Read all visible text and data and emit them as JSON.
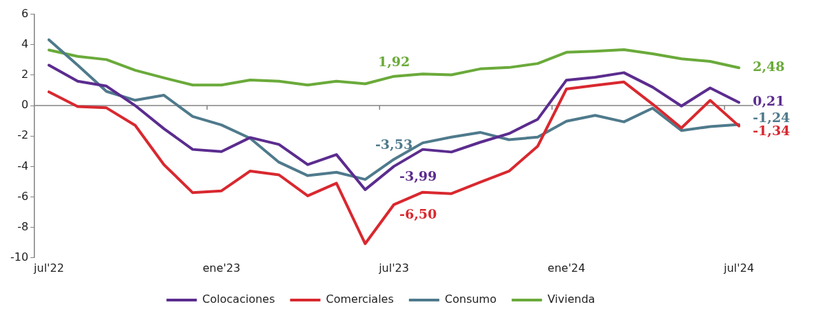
{
  "chart_data": {
    "type": "line",
    "categories": [
      "jul'22",
      null,
      null,
      null,
      null,
      null,
      "ene'23",
      null,
      null,
      null,
      null,
      null,
      "jul'23",
      null,
      null,
      null,
      null,
      null,
      "ene'24",
      null,
      null,
      null,
      null,
      null,
      "jul'24"
    ],
    "series": [
      {
        "name": "Colocaciones",
        "color": "#5b2c8f",
        "values": [
          2.65,
          1.6,
          1.28,
          0,
          -1.52,
          -2.88,
          -3.02,
          -2.1,
          -2.55,
          -3.88,
          -3.22,
          -5.52,
          -3.99,
          -2.88,
          -3.05,
          -2.41,
          -1.84,
          -0.9,
          1.67,
          1.86,
          2.16,
          1.21,
          -0.03,
          1.16,
          0.21
        ],
        "value_labels": [
          null,
          null,
          null,
          null,
          null,
          null,
          null,
          null,
          null,
          null,
          null,
          null,
          "-3,99",
          null,
          null,
          null,
          null,
          null,
          null,
          null,
          null,
          null,
          null,
          null,
          "0,21"
        ]
      },
      {
        "name": "Comerciales",
        "color": "#d9282f",
        "values": [
          0.9,
          -0.07,
          -0.15,
          -1.3,
          -3.88,
          -5.72,
          -5.6,
          -4.3,
          -4.55,
          -5.93,
          -5.1,
          -9.07,
          -6.5,
          -5.69,
          -5.78,
          -5.03,
          -4.31,
          -2.67,
          1.09,
          1.33,
          1.55,
          0.09,
          -1.47,
          0.34,
          -1.34
        ],
        "value_labels": [
          null,
          null,
          null,
          null,
          null,
          null,
          null,
          null,
          null,
          null,
          null,
          null,
          "-6,50",
          null,
          null,
          null,
          null,
          null,
          null,
          null,
          null,
          null,
          null,
          null,
          "-1,34"
        ]
      },
      {
        "name": "Consumo",
        "color": "#4f7a8c",
        "values": [
          4.32,
          2.65,
          0.93,
          0.35,
          0.68,
          -0.72,
          -1.27,
          -2.15,
          -3.72,
          -4.6,
          -4.38,
          -4.85,
          -3.53,
          -2.45,
          -2.07,
          -1.76,
          -2.24,
          -2.07,
          -1.03,
          -0.64,
          -1.07,
          -0.17,
          -1.64,
          -1.38,
          -1.24
        ],
        "value_labels": [
          null,
          null,
          null,
          null,
          null,
          null,
          null,
          null,
          null,
          null,
          null,
          null,
          "-3,53",
          null,
          null,
          null,
          null,
          null,
          null,
          null,
          null,
          null,
          null,
          null,
          "-1,24"
        ]
      },
      {
        "name": "Vivienda",
        "color": "#6aaa3a",
        "values": [
          3.65,
          3.23,
          3.02,
          2.32,
          1.82,
          1.35,
          1.35,
          1.68,
          1.6,
          1.35,
          1.6,
          1.43,
          1.92,
          2.07,
          2.02,
          2.41,
          2.5,
          2.76,
          3.5,
          3.57,
          3.67,
          3.4,
          3.07,
          2.9,
          2.48
        ],
        "value_labels": [
          null,
          null,
          null,
          null,
          null,
          null,
          null,
          null,
          null,
          null,
          null,
          null,
          "1,92",
          null,
          null,
          null,
          null,
          null,
          null,
          null,
          null,
          null,
          null,
          null,
          "2,48"
        ]
      }
    ],
    "ylim": [
      -10,
      6
    ],
    "yticks": [
      -10,
      -8,
      -6,
      -4,
      -2,
      0,
      2,
      4,
      6
    ],
    "legend": "bottom",
    "marker": "none"
  }
}
